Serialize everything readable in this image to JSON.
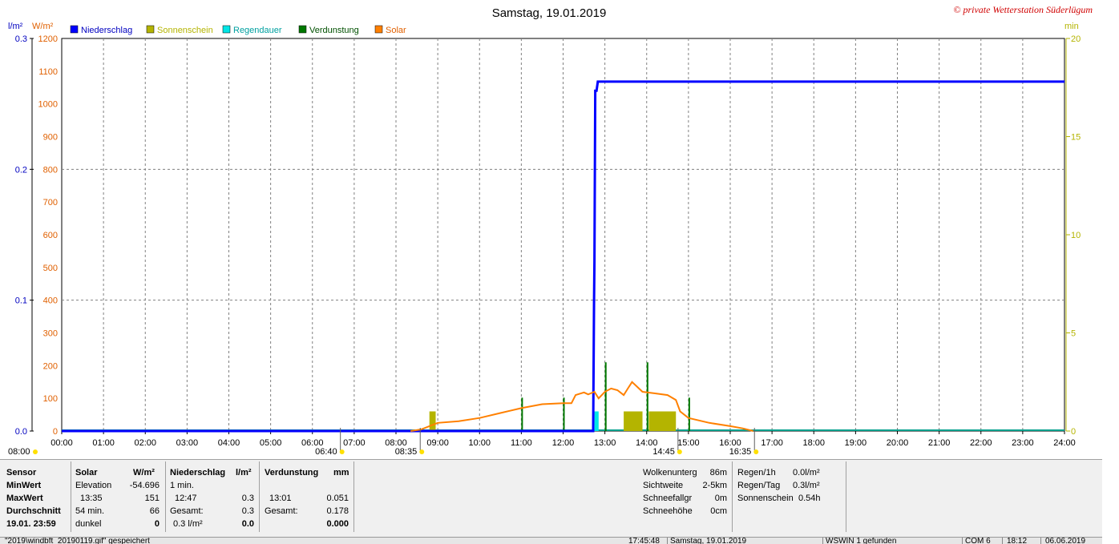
{
  "title": "Samstag, 19.01.2019",
  "copyright": "© private Wetterstation Süderlügum",
  "units": {
    "left1": "l/m²",
    "left2": "W/m²",
    "right": "min"
  },
  "legend": [
    {
      "label": "Niederschlag",
      "color": "#0000ff"
    },
    {
      "label": "Sonnenschein",
      "color": "#b4b400"
    },
    {
      "label": "Regendauer",
      "color": "#00e6e6"
    },
    {
      "label": "Verdunstung",
      "color": "#007800"
    },
    {
      "label": "Solar",
      "color": "#ff8000"
    }
  ],
  "chart_data": {
    "type": "line",
    "title": "Samstag, 19.01.2019",
    "x_unit": "hour of day",
    "xlim": [
      0,
      24
    ],
    "x_ticks": [
      "00:00",
      "01:00",
      "02:00",
      "03:00",
      "04:00",
      "05:00",
      "06:00",
      "07:00",
      "08:00",
      "09:00",
      "10:00",
      "11:00",
      "12:00",
      "13:00",
      "14:00",
      "15:00",
      "16:00",
      "17:00",
      "18:00",
      "19:00",
      "20:00",
      "21:00",
      "22:00",
      "23:00",
      "24:00"
    ],
    "axes": {
      "precip": {
        "label": "l/m²",
        "ylim": [
          0,
          0.3
        ],
        "ticks": [
          "0.0",
          "0.1",
          "0.2",
          "0.3"
        ]
      },
      "solar": {
        "label": "W/m²",
        "ylim": [
          0,
          1200
        ],
        "ticks": [
          "0",
          "100",
          "200",
          "300",
          "400",
          "500",
          "600",
          "700",
          "800",
          "900",
          "1000",
          "1100",
          "1200"
        ]
      },
      "minutes": {
        "label": "min",
        "ylim": [
          0,
          20
        ],
        "ticks": [
          "0",
          "5",
          "10",
          "15",
          "20"
        ]
      }
    },
    "series": [
      {
        "name": "Niederschlag",
        "axis": "precip",
        "color": "#0000ff",
        "points": [
          [
            0,
            0
          ],
          [
            12.72,
            0
          ],
          [
            12.74,
            0.1
          ],
          [
            12.75,
            0.13
          ],
          [
            12.77,
            0.26
          ],
          [
            12.8,
            0.26
          ],
          [
            12.83,
            0.267
          ],
          [
            24,
            0.267
          ]
        ]
      },
      {
        "name": "Solar",
        "axis": "solar",
        "color": "#ff8000",
        "points": [
          [
            8.35,
            0
          ],
          [
            8.6,
            5
          ],
          [
            9.0,
            25
          ],
          [
            9.5,
            30
          ],
          [
            10.0,
            40
          ],
          [
            10.5,
            55
          ],
          [
            11.0,
            70
          ],
          [
            11.5,
            82
          ],
          [
            12.0,
            85
          ],
          [
            12.2,
            85
          ],
          [
            12.3,
            110
          ],
          [
            12.5,
            118
          ],
          [
            12.6,
            112
          ],
          [
            12.75,
            120
          ],
          [
            12.85,
            100
          ],
          [
            13.0,
            120
          ],
          [
            13.15,
            130
          ],
          [
            13.3,
            125
          ],
          [
            13.45,
            110
          ],
          [
            13.55,
            130
          ],
          [
            13.65,
            150
          ],
          [
            13.75,
            138
          ],
          [
            13.9,
            120
          ],
          [
            14.2,
            115
          ],
          [
            14.5,
            110
          ],
          [
            14.7,
            95
          ],
          [
            14.8,
            60
          ],
          [
            15.0,
            40
          ],
          [
            15.5,
            25
          ],
          [
            16.0,
            15
          ],
          [
            16.3,
            8
          ],
          [
            16.55,
            0
          ]
        ]
      },
      {
        "name": "Sonnenschein",
        "axis": "minutes",
        "color": "#b4b400",
        "bars": [
          [
            8.8,
            8.95,
            1.0
          ],
          [
            13.45,
            13.9,
            1.0
          ],
          [
            14.05,
            14.7,
            1.0
          ]
        ]
      },
      {
        "name": "Verdunstung",
        "axis": "minutes",
        "color": "#007800",
        "bars": [
          [
            11.0,
            11.03,
            1.7
          ],
          [
            12.0,
            12.03,
            1.7
          ],
          [
            13.0,
            13.04,
            3.5
          ],
          [
            14.0,
            14.04,
            3.5
          ],
          [
            15.0,
            15.03,
            1.7
          ]
        ]
      },
      {
        "name": "Regendauer",
        "axis": "minutes",
        "color": "#00e6e6",
        "bars": [
          [
            12.75,
            12.85,
            1.0
          ]
        ]
      }
    ],
    "annotations": [
      {
        "label": "08:00",
        "x": 8.0
      },
      {
        "label": "06:40",
        "x": 6.67
      },
      {
        "label": "08:35",
        "x": 8.58
      },
      {
        "label": "14:45",
        "x": 14.75
      },
      {
        "label": "16:35",
        "x": 16.58
      }
    ]
  },
  "table": {
    "sensor": {
      "header": "Sensor",
      "rows": [
        "MinWert",
        "MaxWert",
        "Durchschnitt",
        "19.01.  23:59"
      ]
    },
    "solar": {
      "header": "Solar",
      "unit": "W/m²",
      "rows": [
        [
          "Elevation",
          "-54.696"
        ],
        [
          "13:35",
          "151"
        ],
        [
          "54 min.",
          "66"
        ],
        [
          "dunkel",
          "0"
        ]
      ]
    },
    "precip": {
      "header": "Niederschlag",
      "unit": "l/m²",
      "rows": [
        [
          "1 min.",
          ""
        ],
        [
          "12:47",
          "0.3"
        ],
        [
          "Gesamt:",
          "0.3"
        ],
        [
          "0.3 l/m²",
          "0.0"
        ]
      ]
    },
    "evap": {
      "header": "Verdunstung",
      "unit": "mm",
      "rows": [
        [
          "",
          ""
        ],
        [
          "13:01",
          "0.051"
        ],
        [
          "Gesamt:",
          "0.178"
        ],
        [
          "",
          "0.000"
        ]
      ]
    },
    "misc": [
      [
        "Wolkenunterg",
        "86m"
      ],
      [
        "Sichtweite",
        "2-5km"
      ],
      [
        "Schneefallgr",
        "0m"
      ],
      [
        "Schneehöhe",
        "0cm"
      ]
    ],
    "rain": [
      [
        "Regen/1h",
        "0.0l/m²"
      ],
      [
        "Regen/Tag",
        "0.3l/m²"
      ],
      [
        "Sonnenschein",
        "0.54h"
      ]
    ]
  },
  "statusbar": {
    "file": "\"2019\\windbft_20190119.gif\" gespeichert",
    "time": "17:45:48",
    "date": "Samstag, 19.01.2019",
    "device": "WSWIN 1 gefunden",
    "com": "COM 6",
    "clock": "18:12",
    "today": "06.06.2019"
  }
}
